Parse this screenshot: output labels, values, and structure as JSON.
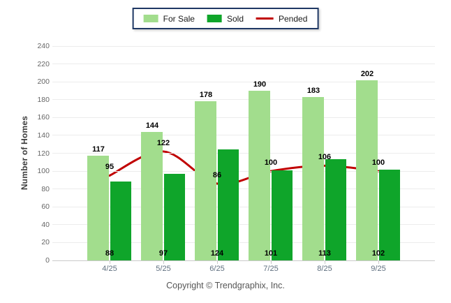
{
  "legend": {
    "items": [
      {
        "label": "For Sale",
        "swatch": "box-light-green"
      },
      {
        "label": "Sold",
        "swatch": "box-dark-green"
      },
      {
        "label": "Pended",
        "swatch": "red-line"
      }
    ]
  },
  "chart_data": {
    "type": "bar",
    "subtype": "grouped bars with smoothed overlay line",
    "categories": [
      "4/25",
      "5/25",
      "6/25",
      "7/25",
      "8/25",
      "9/25"
    ],
    "series": [
      {
        "name": "For Sale",
        "type": "bar",
        "color": "#a2dd8d",
        "values": [
          117,
          144,
          178,
          190,
          183,
          202
        ]
      },
      {
        "name": "Sold",
        "type": "bar",
        "color": "#0fa52a",
        "values": [
          88,
          97,
          124,
          101,
          113,
          102
        ]
      },
      {
        "name": "Pended",
        "type": "line",
        "color": "#c00000",
        "values": [
          95,
          122,
          86,
          100,
          106,
          100
        ]
      }
    ],
    "xlabel": "",
    "ylabel": "Number of Homes",
    "ylim": [
      0,
      240
    ],
    "ytick_step": 20,
    "grid": true,
    "legend_position": "top-center",
    "colors": {
      "for_sale": "#a2dd8d",
      "sold": "#0fa52a",
      "pended": "#c00000",
      "legend_border": "#1f3864",
      "gridline": "#ececec",
      "axis_line": "#c9c9c9",
      "tick_text": "#666666",
      "value_text": "#000000"
    }
  },
  "footer": {
    "copyright": "Copyright © Trendgraphix, Inc."
  }
}
